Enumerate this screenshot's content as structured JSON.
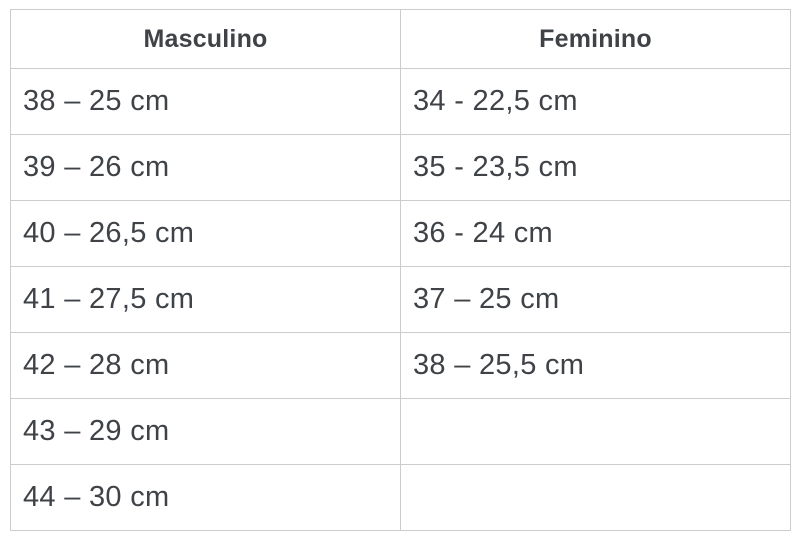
{
  "chart_data": {
    "type": "table",
    "title": "",
    "columns": [
      "Masculino",
      "Feminino"
    ],
    "rows": [
      [
        "38 – 25 cm",
        "34 - 22,5 cm"
      ],
      [
        "39 – 26 cm",
        "35 - 23,5 cm"
      ],
      [
        "40 – 26,5 cm",
        "36 - 24 cm"
      ],
      [
        "41 – 27,5 cm",
        "37 – 25 cm"
      ],
      [
        "42 – 28 cm",
        "38 – 25,5 cm"
      ],
      [
        "43 – 29 cm",
        ""
      ],
      [
        "44 – 30 cm",
        ""
      ]
    ]
  },
  "colors": {
    "border": "#cccccc",
    "text": "#3f4347",
    "background": "#ffffff"
  }
}
